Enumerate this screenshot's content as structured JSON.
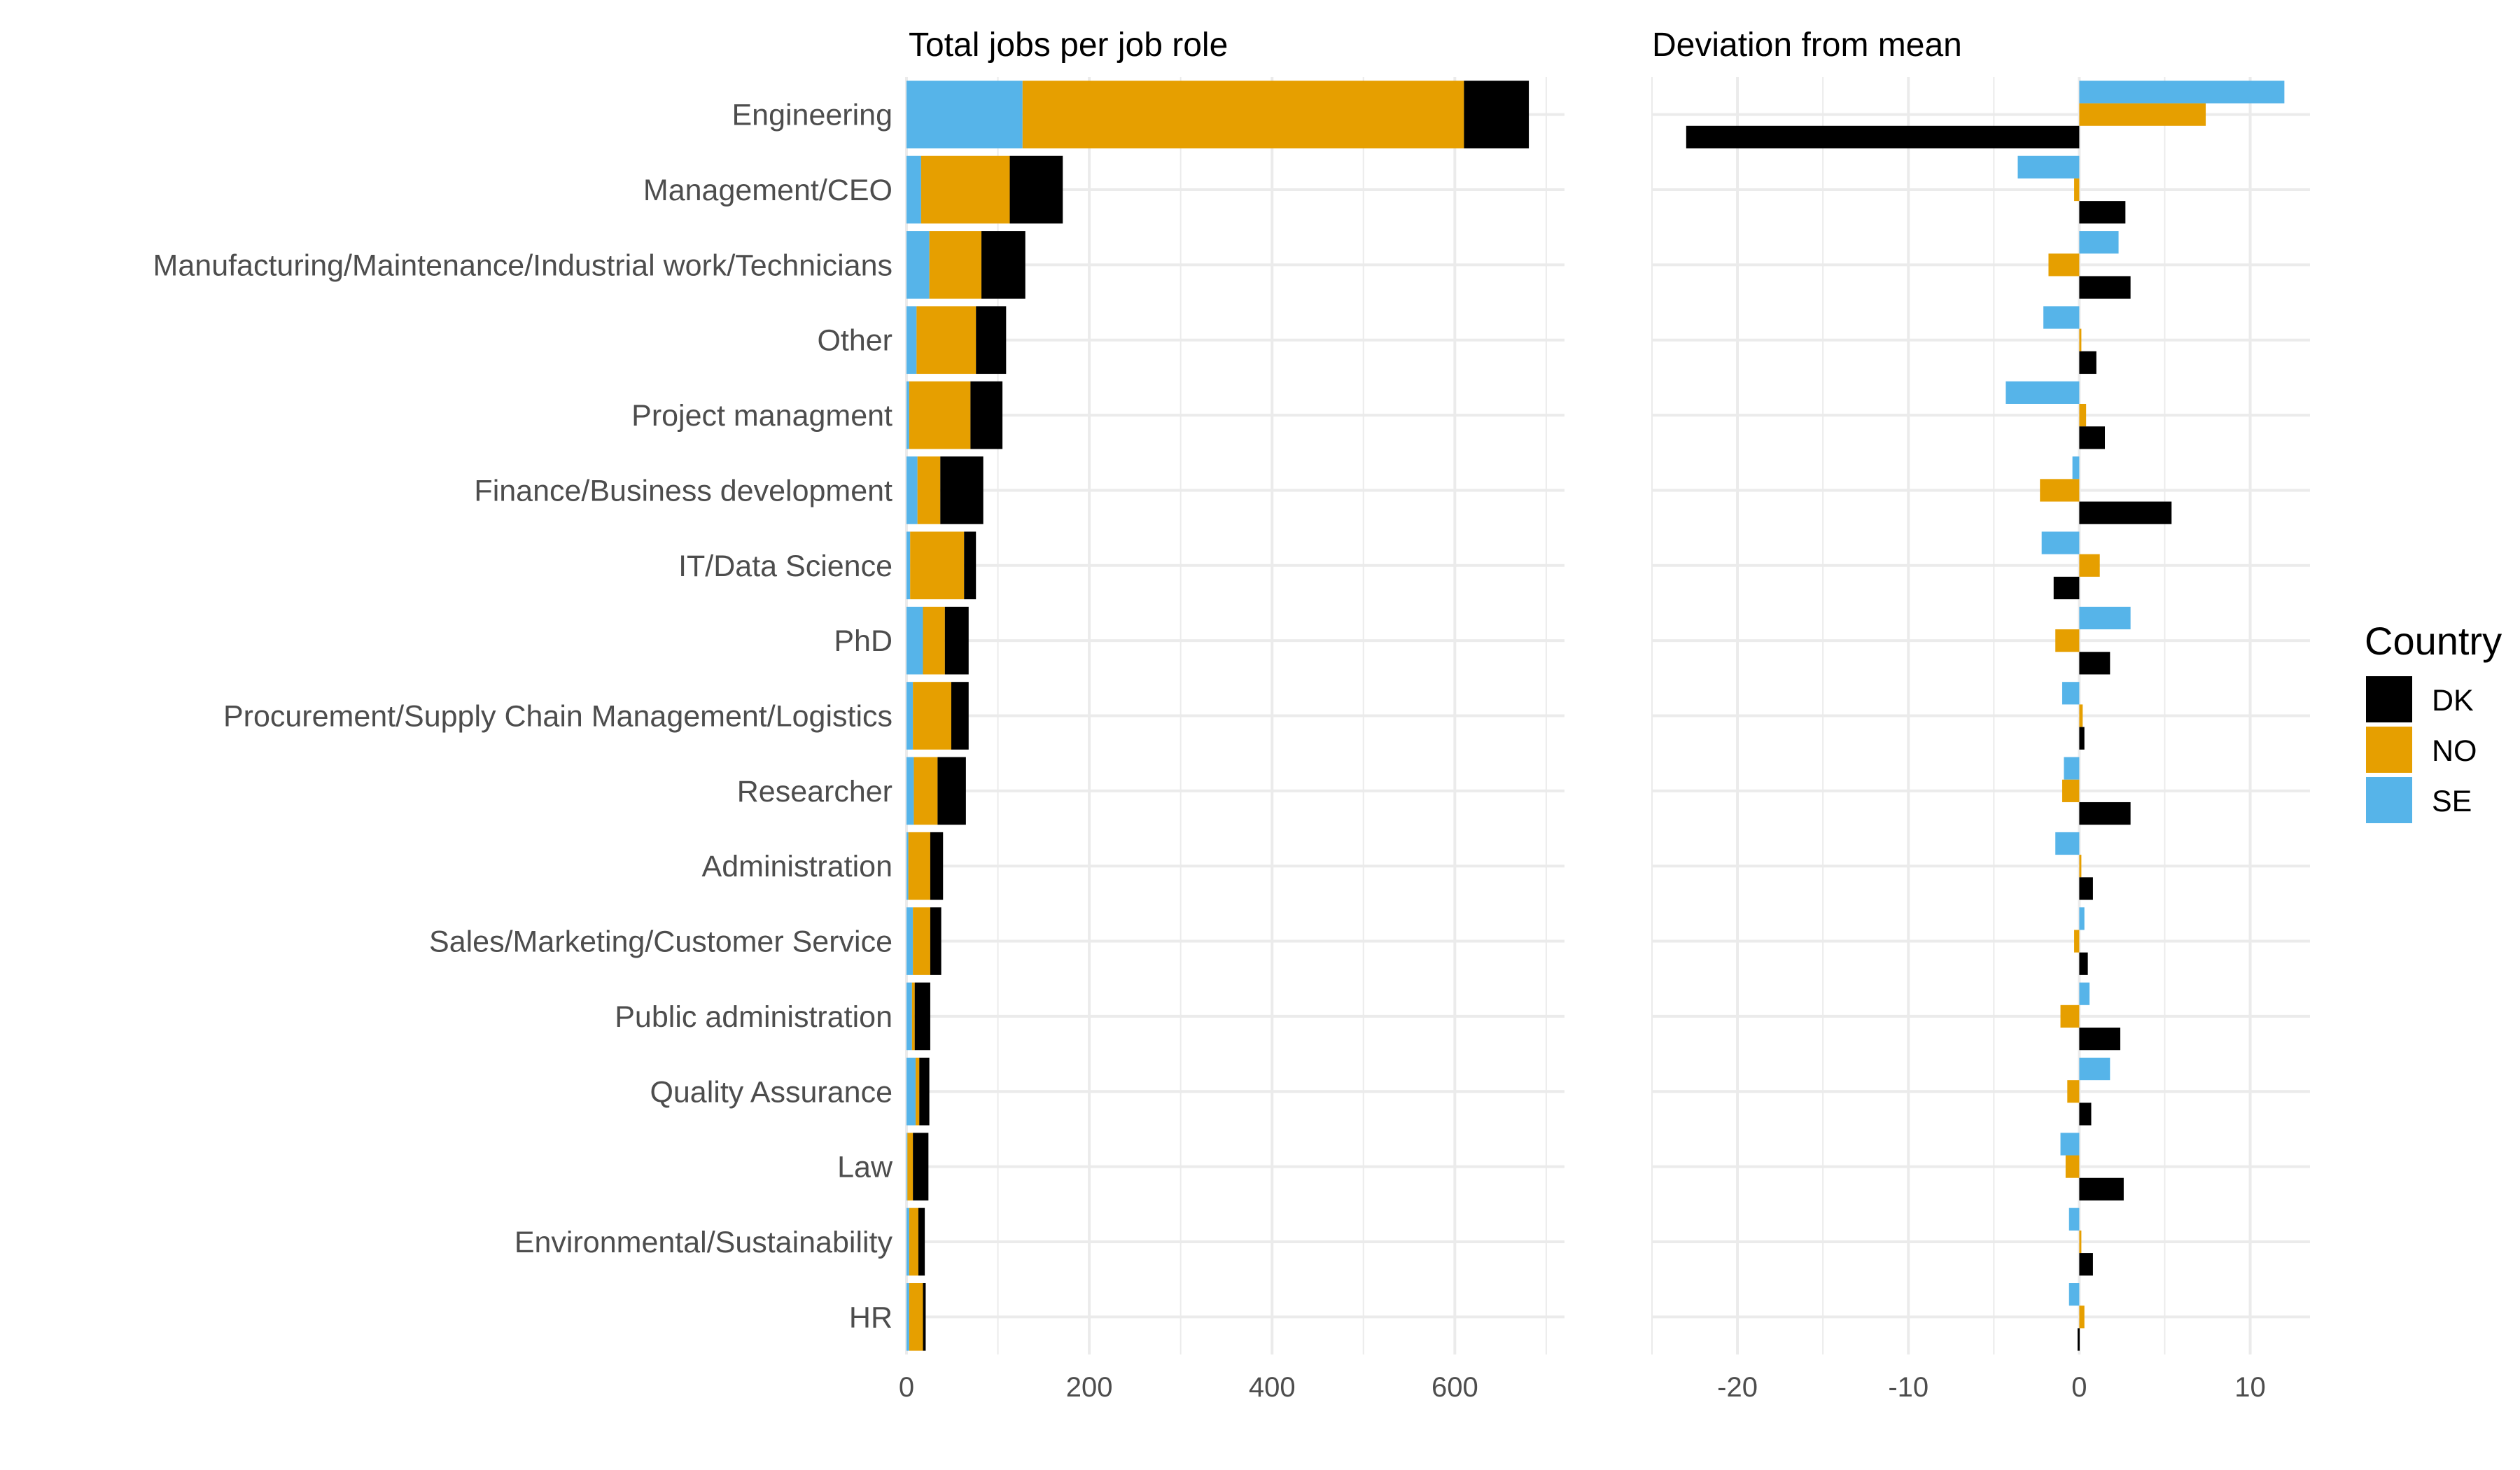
{
  "chart_data": [
    {
      "type": "bar",
      "orientation": "horizontal",
      "stacked": true,
      "title": "Total jobs per job role",
      "xlabel": "",
      "ylabel": "",
      "xlim": [
        0,
        720
      ],
      "xticks": [
        "0",
        "200",
        "400",
        "600"
      ],
      "grid": true,
      "categories": [
        "Engineering",
        "Management/CEO",
        "Manufacturing/Maintenance/Industrial work/Technicians",
        "Other",
        "Project managment",
        "Finance/Business development",
        "IT/Data Science",
        "PhD",
        "Procurement/Supply Chain Management/Logistics",
        "Researcher",
        "Administration",
        "Sales/Marketing/Customer Service",
        "Public administration",
        "Quality Assurance",
        "Law",
        "Environmental/Sustainability",
        "HR"
      ],
      "series": [
        {
          "name": "SE",
          "color": "#56B4E9",
          "values": [
            127,
            16,
            25,
            11,
            3,
            12,
            4,
            18,
            7,
            8,
            2,
            7,
            6,
            10,
            1,
            3,
            3
          ]
        },
        {
          "name": "NO",
          "color": "#E69F00",
          "values": [
            483,
            97,
            57,
            65,
            67,
            25,
            59,
            24,
            42,
            26,
            24,
            19,
            3,
            4,
            6,
            10,
            15
          ]
        },
        {
          "name": "DK",
          "color": "#000000",
          "values": [
            71,
            58,
            48,
            33,
            35,
            47,
            13,
            26,
            19,
            31,
            14,
            12,
            17,
            11,
            17,
            7,
            3
          ]
        }
      ]
    },
    {
      "type": "bar",
      "orientation": "horizontal",
      "grouped": true,
      "title": "Deviation from mean",
      "xlabel": "",
      "ylabel": "",
      "xlim": [
        -25,
        13.5
      ],
      "xticks": [
        "-20",
        "-10",
        "0",
        "10"
      ],
      "grid": true,
      "categories": [
        "Engineering",
        "Management/CEO",
        "Manufacturing/Maintenance/Industrial work/Technicians",
        "Other",
        "Project managment",
        "Finance/Business development",
        "IT/Data Science",
        "PhD",
        "Procurement/Supply Chain Management/Logistics",
        "Researcher",
        "Administration",
        "Sales/Marketing/Customer Service",
        "Public administration",
        "Quality Assurance",
        "Law",
        "Environmental/Sustainability",
        "HR"
      ],
      "series": [
        {
          "name": "SE",
          "color": "#56B4E9",
          "values": [
            12.0,
            -3.6,
            2.3,
            -2.1,
            -4.3,
            -0.4,
            -2.2,
            3.0,
            -1.0,
            -0.9,
            -1.4,
            0.3,
            0.6,
            1.8,
            -1.1,
            -0.6,
            -0.6
          ]
        },
        {
          "name": "NO",
          "color": "#E69F00",
          "values": [
            7.4,
            -0.3,
            -1.8,
            0.0,
            0.4,
            -2.3,
            1.2,
            -1.4,
            0.2,
            -1.0,
            0.0,
            -0.3,
            -1.1,
            -0.7,
            -0.8,
            0.1,
            0.3
          ]
        },
        {
          "name": "DK",
          "color": "#000000",
          "values": [
            -23.0,
            2.7,
            3.0,
            1.0,
            1.5,
            5.4,
            -1.5,
            1.8,
            0.3,
            3.0,
            0.8,
            0.5,
            2.4,
            0.7,
            2.6,
            0.8,
            -0.1
          ]
        }
      ]
    }
  ],
  "legend": {
    "title": "Country",
    "placement": "right",
    "items": [
      {
        "label": "DK",
        "color": "#000000"
      },
      {
        "label": "NO",
        "color": "#E69F00"
      },
      {
        "label": "SE",
        "color": "#56B4E9"
      }
    ]
  }
}
